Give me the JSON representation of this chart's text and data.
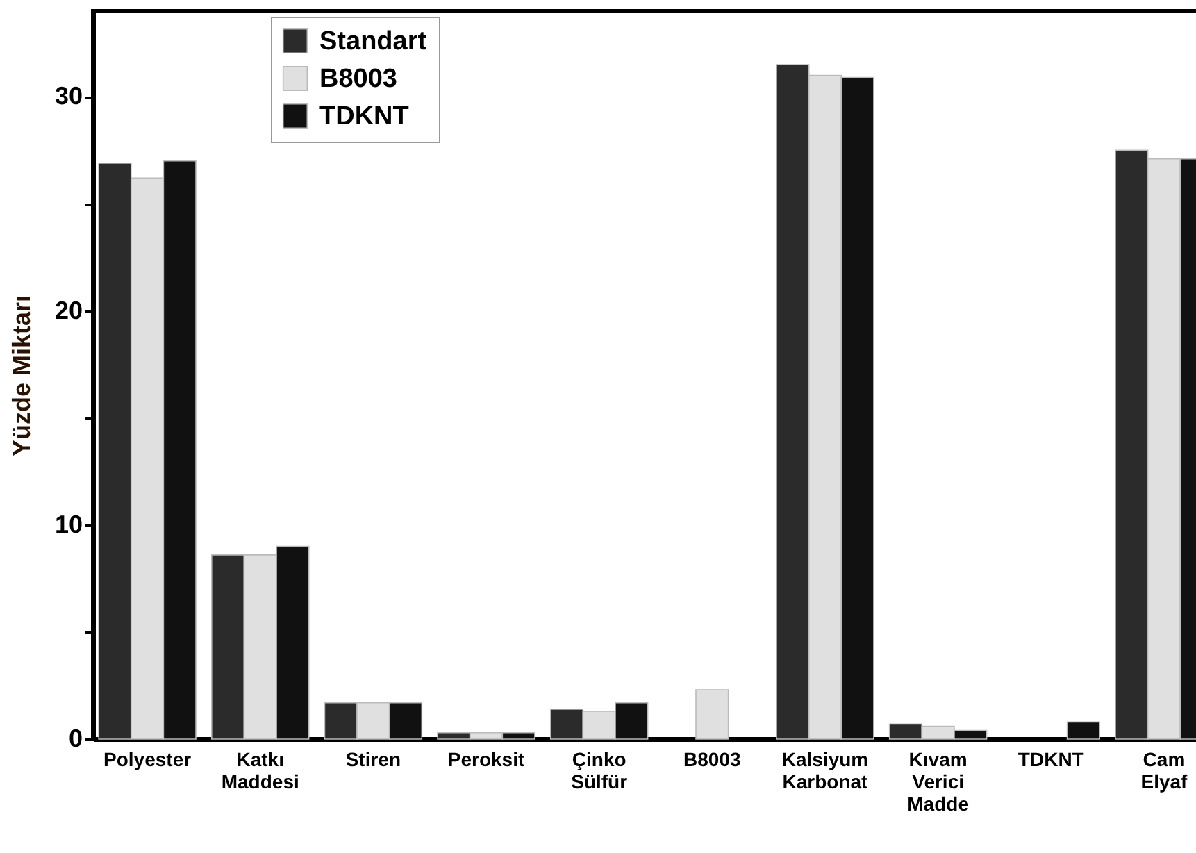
{
  "chart_data": {
    "type": "bar",
    "ylabel": "Yüzde Miktarı",
    "categories": [
      "Polyester",
      "Katkı Maddesi",
      "Stiren",
      "Peroksit",
      "Çinko Sülfür",
      "B8003",
      "Kalsiyum Karbonat",
      "Kıvam Verici Madde",
      "TDKNT",
      "Cam Elyaf"
    ],
    "series": [
      {
        "name": "Standart",
        "color": "#2b2b2b",
        "values": [
          26.9,
          8.6,
          1.7,
          0.3,
          1.4,
          null,
          31.5,
          0.7,
          null,
          27.5
        ]
      },
      {
        "name": "B8003",
        "color": "#e0e0e0",
        "values": [
          26.2,
          8.6,
          1.7,
          0.3,
          1.3,
          2.3,
          31.0,
          0.6,
          null,
          27.1
        ]
      },
      {
        "name": "TDKNT",
        "color": "#111111",
        "values": [
          27.0,
          9.0,
          1.7,
          0.3,
          1.7,
          null,
          30.9,
          0.4,
          0.8,
          27.1
        ]
      }
    ],
    "ylim": [
      0,
      34
    ],
    "yticks": [
      0,
      {
        "value": 5,
        "label": null
      },
      10,
      {
        "value": 15,
        "label": null
      },
      20,
      {
        "value": 25,
        "label": null
      },
      30
    ],
    "grid": false,
    "legend": "top left"
  }
}
